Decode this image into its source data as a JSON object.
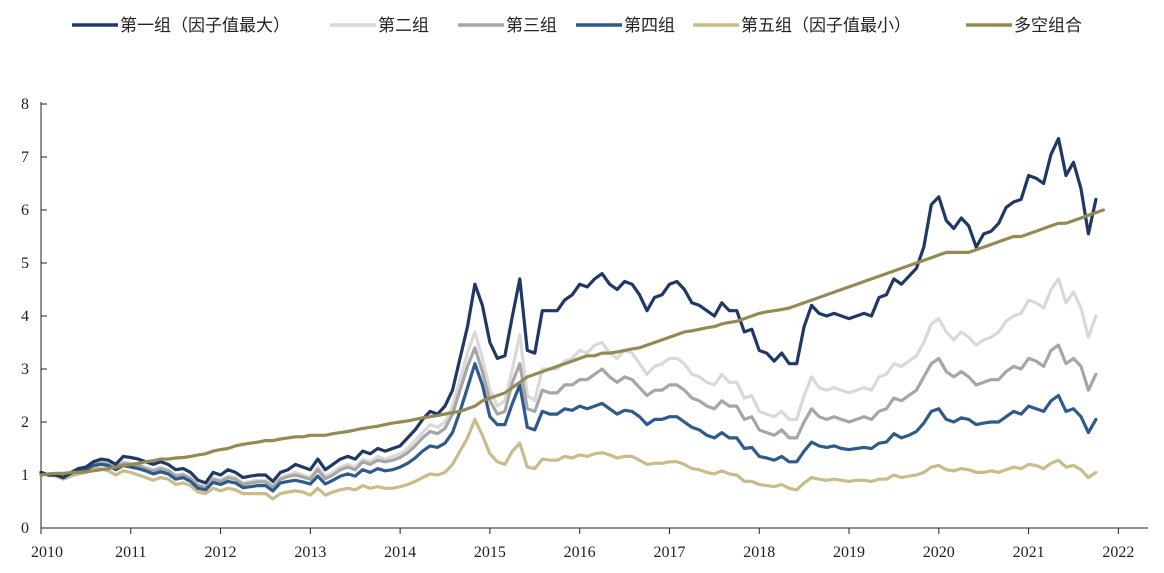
{
  "chart_data": {
    "type": "line",
    "title": "",
    "xlabel": "",
    "ylabel": "",
    "x_start": 2010.0,
    "x_step": 0.0833333,
    "xlim": [
      2010,
      2022.33
    ],
    "ylim": [
      0,
      8
    ],
    "yticks": [
      "0",
      "1",
      "2",
      "3",
      "4",
      "5",
      "6",
      "7",
      "8"
    ],
    "xticks": [
      "2010",
      "2011",
      "2012",
      "2013",
      "2014",
      "2015",
      "2016",
      "2017",
      "2018",
      "2019",
      "2020",
      "2021",
      "2022"
    ],
    "legend_position": "top",
    "grid": false,
    "series": [
      {
        "name": "第一组（因子值最大）",
        "color": "#1f3864",
        "values": [
          1.05,
          1.0,
          1.0,
          0.95,
          1.05,
          1.12,
          1.15,
          1.25,
          1.3,
          1.28,
          1.2,
          1.35,
          1.33,
          1.3,
          1.25,
          1.2,
          1.25,
          1.2,
          1.1,
          1.12,
          1.05,
          0.9,
          0.85,
          1.05,
          1.0,
          1.1,
          1.05,
          0.95,
          0.98,
          1.0,
          1.0,
          0.88,
          1.05,
          1.1,
          1.2,
          1.15,
          1.1,
          1.3,
          1.1,
          1.2,
          1.3,
          1.35,
          1.3,
          1.45,
          1.4,
          1.5,
          1.45,
          1.5,
          1.55,
          1.7,
          1.85,
          2.05,
          2.2,
          2.15,
          2.3,
          2.6,
          3.2,
          3.8,
          4.6,
          4.2,
          3.5,
          3.2,
          3.25,
          4.0,
          4.7,
          3.35,
          3.3,
          4.1,
          4.1,
          4.1,
          4.3,
          4.4,
          4.6,
          4.55,
          4.7,
          4.8,
          4.6,
          4.5,
          4.65,
          4.6,
          4.4,
          4.1,
          4.35,
          4.4,
          4.6,
          4.65,
          4.5,
          4.25,
          4.2,
          4.1,
          4.0,
          4.25,
          4.1,
          4.1,
          3.7,
          3.75,
          3.35,
          3.3,
          3.15,
          3.3,
          3.1,
          3.1,
          3.8,
          4.2,
          4.05,
          4.0,
          4.05,
          4.0,
          3.95,
          4.0,
          4.05,
          4.0,
          4.35,
          4.4,
          4.7,
          4.6,
          4.75,
          4.9,
          5.3,
          6.1,
          6.25,
          5.8,
          5.65,
          5.85,
          5.7,
          5.3,
          5.55,
          5.6,
          5.75,
          6.05,
          6.15,
          6.2,
          6.65,
          6.6,
          6.5,
          7.05,
          7.35,
          6.65,
          6.9,
          6.4,
          5.55,
          6.2
        ]
      },
      {
        "name": "第二组",
        "color": "#d9d9d9",
        "values": [
          1.05,
          1.0,
          1.02,
          0.98,
          1.05,
          1.1,
          1.12,
          1.2,
          1.25,
          1.22,
          1.15,
          1.25,
          1.22,
          1.2,
          1.15,
          1.1,
          1.15,
          1.1,
          1.0,
          1.02,
          0.95,
          0.82,
          0.78,
          0.95,
          0.9,
          0.98,
          0.95,
          0.85,
          0.88,
          0.9,
          0.9,
          0.8,
          0.95,
          1.0,
          1.05,
          1.0,
          0.95,
          1.15,
          0.98,
          1.05,
          1.15,
          1.2,
          1.15,
          1.3,
          1.25,
          1.35,
          1.3,
          1.35,
          1.4,
          1.5,
          1.65,
          1.8,
          1.95,
          1.9,
          2.0,
          2.3,
          2.8,
          3.3,
          3.7,
          3.2,
          2.6,
          2.3,
          2.4,
          3.0,
          3.65,
          2.5,
          2.4,
          3.0,
          3.0,
          3.0,
          3.15,
          3.2,
          3.35,
          3.3,
          3.45,
          3.5,
          3.3,
          3.2,
          3.35,
          3.3,
          3.1,
          2.9,
          3.05,
          3.1,
          3.2,
          3.2,
          3.1,
          2.9,
          2.85,
          2.75,
          2.7,
          2.9,
          2.75,
          2.75,
          2.45,
          2.5,
          2.2,
          2.15,
          2.1,
          2.2,
          2.05,
          2.05,
          2.5,
          2.85,
          2.65,
          2.6,
          2.65,
          2.6,
          2.55,
          2.6,
          2.65,
          2.6,
          2.85,
          2.9,
          3.1,
          3.05,
          3.15,
          3.25,
          3.5,
          3.85,
          3.95,
          3.7,
          3.55,
          3.7,
          3.6,
          3.45,
          3.55,
          3.6,
          3.7,
          3.9,
          4.0,
          4.05,
          4.3,
          4.25,
          4.15,
          4.5,
          4.7,
          4.25,
          4.45,
          4.15,
          3.6,
          4.0
        ]
      },
      {
        "name": "第三组",
        "color": "#a6a6a6",
        "values": [
          1.05,
          1.0,
          1.0,
          0.97,
          1.04,
          1.1,
          1.12,
          1.2,
          1.23,
          1.2,
          1.13,
          1.22,
          1.2,
          1.18,
          1.12,
          1.08,
          1.12,
          1.08,
          0.98,
          1.0,
          0.93,
          0.8,
          0.76,
          0.92,
          0.88,
          0.95,
          0.92,
          0.82,
          0.85,
          0.87,
          0.87,
          0.77,
          0.92,
          0.97,
          1.0,
          0.96,
          0.92,
          1.1,
          0.93,
          1.0,
          1.1,
          1.15,
          1.1,
          1.25,
          1.2,
          1.28,
          1.25,
          1.28,
          1.33,
          1.42,
          1.55,
          1.7,
          1.82,
          1.78,
          1.88,
          2.15,
          2.6,
          3.05,
          3.4,
          2.95,
          2.4,
          2.15,
          2.2,
          2.75,
          3.1,
          2.25,
          2.2,
          2.6,
          2.55,
          2.55,
          2.7,
          2.7,
          2.8,
          2.8,
          2.9,
          3.0,
          2.85,
          2.75,
          2.85,
          2.8,
          2.65,
          2.5,
          2.6,
          2.6,
          2.7,
          2.7,
          2.6,
          2.45,
          2.4,
          2.3,
          2.25,
          2.4,
          2.3,
          2.3,
          2.05,
          2.1,
          1.85,
          1.8,
          1.75,
          1.85,
          1.7,
          1.7,
          2.0,
          2.25,
          2.1,
          2.05,
          2.1,
          2.05,
          2.0,
          2.05,
          2.1,
          2.05,
          2.2,
          2.25,
          2.45,
          2.4,
          2.5,
          2.6,
          2.85,
          3.1,
          3.2,
          2.95,
          2.85,
          2.95,
          2.85,
          2.7,
          2.75,
          2.8,
          2.8,
          2.95,
          3.05,
          3.0,
          3.2,
          3.15,
          3.05,
          3.35,
          3.45,
          3.1,
          3.2,
          3.05,
          2.6,
          2.9
        ]
      },
      {
        "name": "第四组",
        "color": "#2e5a8c",
        "values": [
          1.05,
          1.0,
          1.0,
          0.95,
          1.03,
          1.08,
          1.1,
          1.18,
          1.2,
          1.18,
          1.1,
          1.18,
          1.15,
          1.12,
          1.08,
          1.02,
          1.06,
          1.02,
          0.92,
          0.95,
          0.88,
          0.75,
          0.72,
          0.86,
          0.82,
          0.88,
          0.85,
          0.76,
          0.78,
          0.8,
          0.8,
          0.7,
          0.85,
          0.88,
          0.9,
          0.87,
          0.83,
          0.98,
          0.83,
          0.9,
          0.98,
          1.02,
          0.98,
          1.1,
          1.05,
          1.12,
          1.08,
          1.1,
          1.15,
          1.22,
          1.32,
          1.45,
          1.55,
          1.52,
          1.6,
          1.8,
          2.2,
          2.65,
          3.1,
          2.7,
          2.1,
          1.95,
          1.95,
          2.35,
          2.7,
          1.9,
          1.85,
          2.2,
          2.15,
          2.15,
          2.25,
          2.22,
          2.3,
          2.25,
          2.3,
          2.35,
          2.25,
          2.15,
          2.22,
          2.2,
          2.1,
          1.95,
          2.05,
          2.05,
          2.1,
          2.1,
          2.0,
          1.9,
          1.85,
          1.75,
          1.7,
          1.8,
          1.7,
          1.7,
          1.5,
          1.52,
          1.35,
          1.32,
          1.28,
          1.35,
          1.25,
          1.25,
          1.45,
          1.62,
          1.55,
          1.52,
          1.55,
          1.5,
          1.48,
          1.5,
          1.52,
          1.5,
          1.6,
          1.62,
          1.78,
          1.7,
          1.75,
          1.82,
          1.98,
          2.2,
          2.25,
          2.05,
          2.0,
          2.08,
          2.05,
          1.95,
          1.98,
          2.0,
          2.0,
          2.1,
          2.2,
          2.15,
          2.3,
          2.25,
          2.2,
          2.4,
          2.5,
          2.2,
          2.25,
          2.1,
          1.8,
          2.05
        ]
      },
      {
        "name": "第五组（因子值最小）",
        "color": "#c9bc8a",
        "values": [
          1.05,
          1.0,
          0.98,
          0.92,
          0.98,
          1.02,
          1.05,
          1.12,
          1.12,
          1.08,
          1.0,
          1.08,
          1.05,
          1.0,
          0.95,
          0.9,
          0.95,
          0.92,
          0.82,
          0.85,
          0.8,
          0.68,
          0.65,
          0.75,
          0.7,
          0.75,
          0.72,
          0.65,
          0.65,
          0.65,
          0.65,
          0.55,
          0.65,
          0.68,
          0.7,
          0.68,
          0.62,
          0.75,
          0.62,
          0.68,
          0.72,
          0.75,
          0.72,
          0.8,
          0.75,
          0.78,
          0.75,
          0.75,
          0.78,
          0.82,
          0.88,
          0.95,
          1.02,
          1.0,
          1.05,
          1.2,
          1.45,
          1.7,
          2.05,
          1.75,
          1.4,
          1.25,
          1.2,
          1.45,
          1.6,
          1.15,
          1.12,
          1.3,
          1.28,
          1.28,
          1.35,
          1.32,
          1.38,
          1.35,
          1.4,
          1.42,
          1.38,
          1.32,
          1.35,
          1.35,
          1.28,
          1.2,
          1.22,
          1.22,
          1.25,
          1.25,
          1.2,
          1.12,
          1.1,
          1.05,
          1.02,
          1.08,
          1.02,
          1.0,
          0.88,
          0.88,
          0.82,
          0.8,
          0.78,
          0.82,
          0.75,
          0.72,
          0.85,
          0.95,
          0.92,
          0.9,
          0.92,
          0.9,
          0.88,
          0.9,
          0.9,
          0.88,
          0.92,
          0.92,
          1.0,
          0.95,
          0.98,
          1.0,
          1.05,
          1.15,
          1.18,
          1.1,
          1.08,
          1.12,
          1.1,
          1.05,
          1.05,
          1.08,
          1.05,
          1.1,
          1.15,
          1.12,
          1.2,
          1.18,
          1.12,
          1.22,
          1.28,
          1.15,
          1.18,
          1.1,
          0.95,
          1.05
        ]
      },
      {
        "name": "多空组合",
        "color": "#948a54",
        "values": [
          1.0,
          1.02,
          1.03,
          1.03,
          1.05,
          1.05,
          1.06,
          1.08,
          1.1,
          1.12,
          1.15,
          1.18,
          1.2,
          1.22,
          1.25,
          1.27,
          1.3,
          1.3,
          1.32,
          1.33,
          1.35,
          1.38,
          1.4,
          1.45,
          1.48,
          1.5,
          1.55,
          1.58,
          1.6,
          1.62,
          1.65,
          1.65,
          1.68,
          1.7,
          1.72,
          1.72,
          1.75,
          1.75,
          1.75,
          1.78,
          1.8,
          1.82,
          1.85,
          1.88,
          1.9,
          1.92,
          1.95,
          1.98,
          2.0,
          2.02,
          2.05,
          2.08,
          2.1,
          2.12,
          2.15,
          2.18,
          2.2,
          2.25,
          2.3,
          2.4,
          2.45,
          2.5,
          2.55,
          2.65,
          2.75,
          2.85,
          2.9,
          2.95,
          3.0,
          3.05,
          3.1,
          3.15,
          3.2,
          3.25,
          3.25,
          3.3,
          3.3,
          3.32,
          3.35,
          3.38,
          3.4,
          3.45,
          3.5,
          3.55,
          3.6,
          3.65,
          3.7,
          3.72,
          3.75,
          3.78,
          3.8,
          3.85,
          3.88,
          3.9,
          3.95,
          4.0,
          4.05,
          4.08,
          4.1,
          4.12,
          4.15,
          4.2,
          4.25,
          4.3,
          4.35,
          4.4,
          4.45,
          4.5,
          4.55,
          4.6,
          4.65,
          4.7,
          4.75,
          4.8,
          4.85,
          4.9,
          4.95,
          5.0,
          5.05,
          5.1,
          5.15,
          5.2,
          5.2,
          5.2,
          5.2,
          5.25,
          5.3,
          5.35,
          5.4,
          5.45,
          5.5,
          5.5,
          5.55,
          5.6,
          5.65,
          5.7,
          5.75,
          5.75,
          5.8,
          5.85,
          5.9,
          5.95,
          6.0
        ]
      }
    ]
  }
}
